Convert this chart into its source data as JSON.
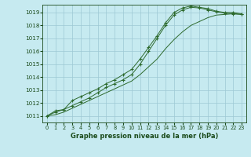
{
  "x": [
    0,
    1,
    2,
    3,
    4,
    5,
    6,
    7,
    8,
    9,
    10,
    11,
    12,
    13,
    14,
    15,
    16,
    17,
    18,
    19,
    20,
    21,
    22,
    23
  ],
  "line1": [
    1011.0,
    1011.4,
    1011.5,
    1012.2,
    1012.5,
    1012.8,
    1013.1,
    1013.5,
    1013.8,
    1014.2,
    1014.6,
    1015.4,
    1016.3,
    1017.2,
    1018.2,
    1019.0,
    1019.35,
    1019.5,
    1019.4,
    1019.3,
    1019.1,
    1019.0,
    1019.0,
    1018.9
  ],
  "line2": [
    1011.0,
    1011.3,
    1011.5,
    1011.8,
    1012.1,
    1012.4,
    1012.8,
    1013.2,
    1013.5,
    1013.8,
    1014.2,
    1015.0,
    1016.0,
    1017.0,
    1018.0,
    1018.8,
    1019.2,
    1019.4,
    1019.35,
    1019.2,
    1019.05,
    1018.95,
    1018.9,
    1018.85
  ],
  "line3": [
    1011.0,
    1011.1,
    1011.3,
    1011.6,
    1011.9,
    1012.2,
    1012.5,
    1012.8,
    1013.1,
    1013.4,
    1013.7,
    1014.2,
    1014.8,
    1015.4,
    1016.2,
    1016.9,
    1017.5,
    1018.0,
    1018.3,
    1018.6,
    1018.8,
    1018.85,
    1018.9,
    1018.85
  ],
  "line_color": "#2d6a2d",
  "bg_color": "#c6eaf0",
  "grid_color": "#9dc8d4",
  "text_color": "#1a4a1a",
  "xlabel": "Graphe pression niveau de la mer (hPa)",
  "ylim": [
    1010.5,
    1019.6
  ],
  "xlim": [
    -0.5,
    23.5
  ],
  "yticks": [
    1011,
    1012,
    1013,
    1014,
    1015,
    1016,
    1017,
    1018,
    1019
  ],
  "xticks": [
    0,
    1,
    2,
    3,
    4,
    5,
    6,
    7,
    8,
    9,
    10,
    11,
    12,
    13,
    14,
    15,
    16,
    17,
    18,
    19,
    20,
    21,
    22,
    23
  ]
}
